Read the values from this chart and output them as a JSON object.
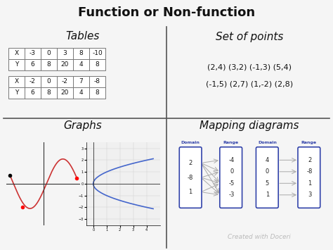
{
  "title": "Function or Non-function",
  "title_fontsize": 13,
  "bg_color": "#f5f5f5",
  "divider_color": "#555555",
  "quadrant_labels": [
    "Tables",
    "Set of points",
    "Graphs",
    "Mapping diagrams"
  ],
  "quadrant_label_fontsize": 11,
  "table1_headers": [
    "X",
    "-3",
    "0",
    "3",
    "8",
    "-10"
  ],
  "table1_row2": [
    "Y",
    "6",
    "8",
    "20",
    "4",
    "8"
  ],
  "table2_headers": [
    "X",
    "-2",
    "0",
    "-2",
    "7",
    "-8"
  ],
  "table2_row2": [
    "Y",
    "6",
    "8",
    "20",
    "4",
    "8"
  ],
  "points_line1": "(2,4) (3,2) (-1,3) (5,4)",
  "points_line2": "(-1,5) (2,7) (1,-2) (2,8)",
  "points_fontsize": 8,
  "mapping1_domain_vals": [
    "2",
    "-8",
    "1"
  ],
  "mapping1_range_vals": [
    "-4",
    "0",
    "-5",
    "-3"
  ],
  "mapping1_arrows": [
    [
      0,
      0
    ],
    [
      0,
      1
    ],
    [
      0,
      2
    ],
    [
      0,
      3
    ],
    [
      1,
      1
    ],
    [
      1,
      2
    ],
    [
      1,
      3
    ],
    [
      2,
      2
    ],
    [
      2,
      3
    ]
  ],
  "mapping2_domain_vals": [
    "4",
    "0",
    "5",
    "1"
  ],
  "mapping2_range_vals": [
    "2",
    "-8",
    "1",
    "3"
  ],
  "mapping2_arrows": [
    [
      0,
      0
    ],
    [
      1,
      1
    ],
    [
      2,
      2
    ],
    [
      3,
      3
    ]
  ],
  "box_color": "#3344aa",
  "arrow_color": "#aaaaaa",
  "map_label_color": "#3344aa",
  "map_label_fontsize": 4.5,
  "map_val_fontsize": 6,
  "watermark": "Created with Doceri",
  "watermark_color": "#bbbbbb",
  "watermark_fontsize": 6.5
}
